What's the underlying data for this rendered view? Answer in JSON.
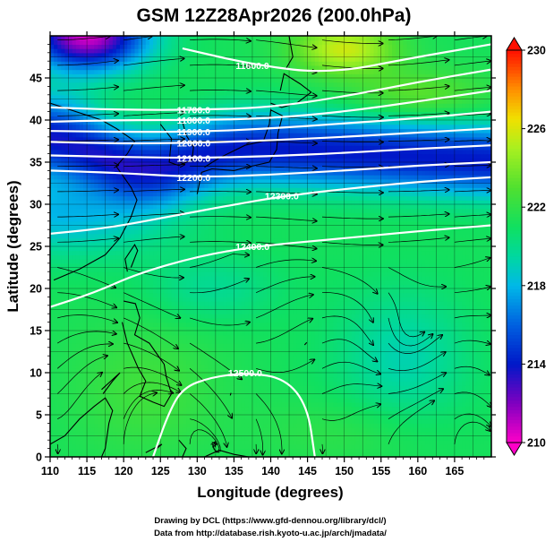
{
  "chart_data": {
    "type": "heatmap",
    "title": "GSM 12Z28Apr2026 (200.0hPa)",
    "xlabel": "Longitude (degrees)",
    "ylabel": "Latitude  (degrees)",
    "xlim": [
      110,
      170
    ],
    "ylim": [
      0,
      50
    ],
    "x_ticks": [
      "110",
      "115",
      "120",
      "125",
      "130",
      "135",
      "140",
      "145",
      "150",
      "155",
      "160",
      "165"
    ],
    "y_ticks": [
      "0",
      "5",
      "10",
      "15",
      "20",
      "25",
      "30",
      "35",
      "40",
      "45"
    ],
    "grid": true,
    "colorbar": {
      "range": [
        210,
        230
      ],
      "ticks": [
        "210",
        "214",
        "218",
        "222",
        "226",
        "230"
      ],
      "stops": [
        {
          "value": 210,
          "color": "#ff00c8"
        },
        {
          "value": 212,
          "color": "#8000c0"
        },
        {
          "value": 214,
          "color": "#0018c8"
        },
        {
          "value": 216,
          "color": "#0060e0"
        },
        {
          "value": 218,
          "color": "#00b8e8"
        },
        {
          "value": 219.5,
          "color": "#00d8a0"
        },
        {
          "value": 221,
          "color": "#10e060"
        },
        {
          "value": 223,
          "color": "#50e030"
        },
        {
          "value": 225,
          "color": "#a8f020"
        },
        {
          "value": 226.5,
          "color": "#f0e000"
        },
        {
          "value": 228,
          "color": "#ff9000"
        },
        {
          "value": 230,
          "color": "#ff1000"
        }
      ]
    },
    "contours": [
      {
        "label": "11600.0",
        "points": [
          [
            128,
            48.5
          ],
          [
            138,
            46.5
          ],
          [
            148,
            45.5
          ],
          [
            160,
            47.5
          ],
          [
            170,
            49
          ]
        ]
      },
      {
        "label": "11700.0",
        "points": [
          [
            110,
            41.5
          ],
          [
            120,
            41.2
          ],
          [
            130,
            41.2
          ],
          [
            140,
            41.5
          ],
          [
            150,
            42.8
          ],
          [
            160,
            44.5
          ],
          [
            170,
            46
          ]
        ]
      },
      {
        "label": "11800.0",
        "points": [
          [
            110,
            39.8
          ],
          [
            120,
            40
          ],
          [
            130,
            40
          ],
          [
            140,
            40.2
          ],
          [
            150,
            41
          ],
          [
            160,
            42.2
          ],
          [
            170,
            43.5
          ]
        ]
      },
      {
        "label": "11900.0",
        "points": [
          [
            110,
            38.7
          ],
          [
            120,
            38.6
          ],
          [
            130,
            38.6
          ],
          [
            140,
            39
          ],
          [
            150,
            39.6
          ],
          [
            160,
            40.2
          ],
          [
            170,
            41
          ]
        ]
      },
      {
        "label": "12000.0",
        "points": [
          [
            110,
            37.4
          ],
          [
            120,
            37.2
          ],
          [
            130,
            37.3
          ],
          [
            140,
            37.6
          ],
          [
            150,
            38
          ],
          [
            160,
            38.5
          ],
          [
            170,
            39
          ]
        ]
      },
      {
        "label": "12100.0",
        "points": [
          [
            110,
            35.8
          ],
          [
            120,
            35.6
          ],
          [
            130,
            35.5
          ],
          [
            140,
            35.7
          ],
          [
            150,
            36.1
          ],
          [
            160,
            36.6
          ],
          [
            170,
            37
          ]
        ]
      },
      {
        "label": "12200.0",
        "points": [
          [
            110,
            34.0
          ],
          [
            120,
            33.7
          ],
          [
            130,
            33.2
          ],
          [
            140,
            33.5
          ],
          [
            150,
            34
          ],
          [
            160,
            34.6
          ],
          [
            170,
            35
          ]
        ]
      },
      {
        "label": "12300.0",
        "points": [
          [
            110,
            26.5
          ],
          [
            118,
            27.2
          ],
          [
            126,
            28.5
          ],
          [
            134,
            29.8
          ],
          [
            142,
            31
          ],
          [
            152,
            32
          ],
          [
            162,
            32.8
          ],
          [
            170,
            33.2
          ]
        ]
      },
      {
        "label": "12400.0",
        "points": [
          [
            110,
            17.8
          ],
          [
            116,
            19.5
          ],
          [
            122,
            21.8
          ],
          [
            130,
            23.8
          ],
          [
            138,
            25
          ],
          [
            148,
            25.8
          ],
          [
            160,
            26.8
          ],
          [
            170,
            27.5
          ]
        ]
      },
      {
        "label": "12500.0",
        "points": [
          [
            124,
            0
          ],
          [
            126,
            5
          ],
          [
            128,
            8.2
          ],
          [
            132,
            9.5
          ],
          [
            137,
            10
          ],
          [
            142,
            9.3
          ],
          [
            145,
            6
          ],
          [
            146,
            0
          ]
        ]
      }
    ],
    "annotations": [
      "11600.0",
      "11700.0",
      "11800.0",
      "11900.0",
      "12000.0",
      "12100.0",
      "12200.0",
      "12300.0",
      "12400.0",
      "12500.0"
    ]
  },
  "credits": {
    "line1": "Drawing by DCL (https://www.gfd-dennou.org/library/dcl/)",
    "line2": "Data from http://database.rish.kyoto-u.ac.jp/arch/jmadata/"
  }
}
